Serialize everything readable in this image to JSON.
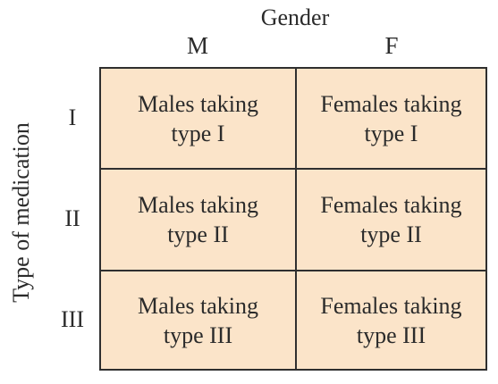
{
  "columns": {
    "title": "Gender",
    "headers": [
      "M",
      "F"
    ]
  },
  "rows": {
    "title": "Type of medication",
    "headers": [
      "I",
      "II",
      "III"
    ]
  },
  "cells": [
    [
      {
        "line1": "Males taking",
        "line2": "type I"
      },
      {
        "line1": "Females taking",
        "line2": "type I"
      }
    ],
    [
      {
        "line1": "Males taking",
        "line2": "type II"
      },
      {
        "line1": "Females taking",
        "line2": "type II"
      }
    ],
    [
      {
        "line1": "Males taking",
        "line2": "type III"
      },
      {
        "line1": "Females taking",
        "line2": "type III"
      }
    ]
  ],
  "colors": {
    "cell_fill": "#fbe4c9",
    "border": "#2f2f2f",
    "text": "#2b2b2b"
  }
}
